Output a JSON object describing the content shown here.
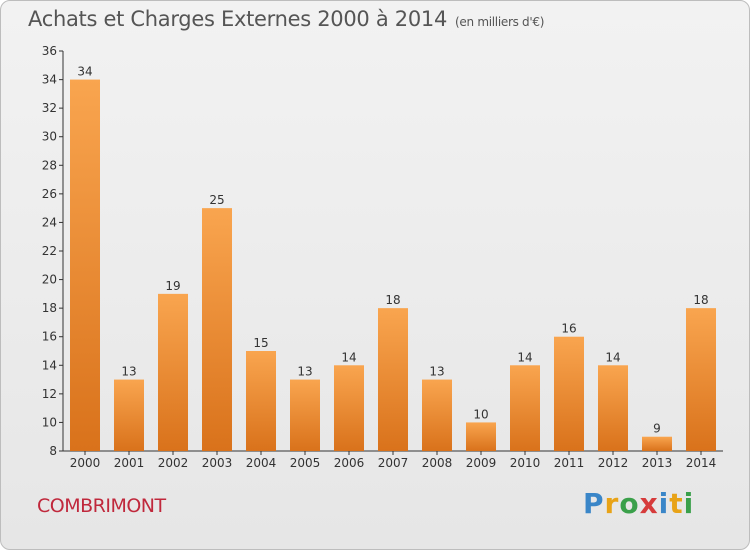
{
  "header": {
    "title": "Achats et Charges Externes 2000 à 2014",
    "unit": "(en milliers d'€)"
  },
  "footer": {
    "city": "COMBRIMONT",
    "logo_letters": [
      "P",
      "r",
      "o",
      "x",
      "i",
      "t",
      "i"
    ],
    "logo_colors": [
      "#3a86c8",
      "#e8a317",
      "#3aa04a",
      "#d63b3b",
      "#3a86c8",
      "#e8a317",
      "#3aa04a"
    ]
  },
  "chart_data": {
    "type": "bar",
    "categories": [
      "2000",
      "2001",
      "2002",
      "2003",
      "2004",
      "2005",
      "2006",
      "2007",
      "2008",
      "2009",
      "2010",
      "2011",
      "2012",
      "2013",
      "2014"
    ],
    "values": [
      34,
      13,
      19,
      25,
      15,
      13,
      14,
      18,
      13,
      10,
      14,
      16,
      14,
      9,
      18
    ],
    "title": "Achats et Charges Externes 2000 à 2014",
    "ylim": [
      8,
      36
    ],
    "yticks": [
      8,
      10,
      12,
      14,
      16,
      18,
      20,
      22,
      24,
      26,
      28,
      30,
      32,
      34,
      36
    ],
    "grid": false,
    "bar_color_light": "#f9a54f",
    "bar_color_dark": "#d9721b"
  }
}
